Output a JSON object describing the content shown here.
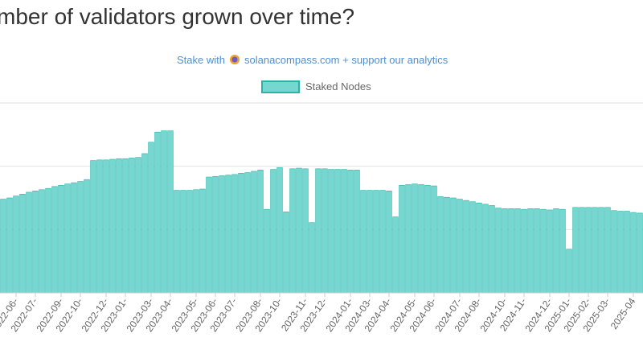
{
  "chart_data": {
    "type": "bar",
    "title": "mber of validators grown over time?",
    "subtitle": [
      "Stake with",
      "solanacompass.com + support our analytics"
    ],
    "series": [
      {
        "name": "Staked Nodes",
        "color": "#74d7d0",
        "border": "#2bb3a7",
        "values": [
          1480,
          1500,
          1530,
          1560,
          1590,
          1610,
          1630,
          1650,
          1680,
          1700,
          1720,
          1740,
          1760,
          1790,
          2090,
          2100,
          2100,
          2110,
          2120,
          2120,
          2130,
          2140,
          2200,
          2380,
          2540,
          2560,
          2560,
          1620,
          1620,
          1620,
          1630,
          1640,
          1830,
          1840,
          1850,
          1860,
          1870,
          1890,
          1900,
          1920,
          1940,
          1320,
          1950,
          1980,
          1280,
          1960,
          1970,
          1960,
          1110,
          1960,
          1960,
          1950,
          1950,
          1950,
          1940,
          1940,
          1620,
          1620,
          1620,
          1620,
          1610,
          1200,
          1700,
          1710,
          1720,
          1710,
          1700,
          1690,
          1520,
          1510,
          1500,
          1480,
          1460,
          1440,
          1420,
          1400,
          1380,
          1340,
          1330,
          1330,
          1330,
          1320,
          1330,
          1330,
          1320,
          1310,
          1330,
          1320,
          690,
          1350,
          1350,
          1350,
          1350,
          1350,
          1350,
          1300,
          1290,
          1290,
          1270,
          1260
        ]
      }
    ],
    "categories": [
      null,
      null,
      "2022-06-",
      null,
      null,
      "2022-07-",
      null,
      null,
      null,
      "2022-09-",
      null,
      null,
      "2022-10-",
      null,
      null,
      null,
      "2022-12-",
      null,
      null,
      "2023-01-",
      null,
      null,
      null,
      "2023-03-",
      null,
      null,
      "2023-04-",
      null,
      null,
      null,
      "2023-05-",
      null,
      null,
      "2023-06-",
      null,
      null,
      "2023-07-",
      null,
      null,
      null,
      "2023-08-",
      null,
      null,
      "2023-10-",
      null,
      null,
      null,
      "2023-11-",
      null,
      null,
      "2023-12-",
      null,
      null,
      null,
      "2024-01-",
      null,
      null,
      "2024-03-",
      null,
      null,
      "2024-04-",
      null,
      null,
      null,
      "2024-05-",
      null,
      null,
      "2024-06-",
      null,
      null,
      null,
      "2024-07-",
      null,
      null,
      "2024-08-",
      null,
      null,
      null,
      "2024-10-",
      null,
      null,
      "2024-11-",
      null,
      null,
      null,
      "2024-12-",
      null,
      null,
      "2025-01-",
      null,
      null,
      "2025-02-",
      null,
      null,
      "2025-03-",
      null,
      null,
      null,
      "2025-04",
      null
    ],
    "ylim": [
      0,
      3000
    ],
    "yticks": [
      1000,
      2000,
      3000
    ],
    "grid": true
  }
}
